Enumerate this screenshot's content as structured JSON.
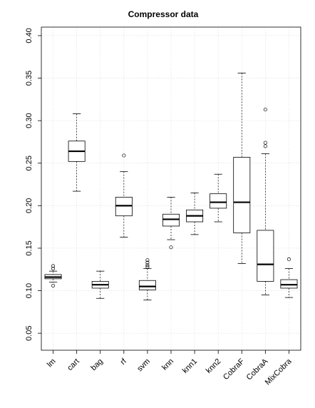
{
  "chart_data": {
    "type": "boxplot",
    "title": "Compressor data",
    "xlabel": "",
    "ylabel": "",
    "ylim": [
      0.03,
      0.41
    ],
    "yticks": [
      "0.05",
      "0.10",
      "0.15",
      "0.20",
      "0.25",
      "0.30",
      "0.35",
      "0.40"
    ],
    "ytick_values": [
      0.05,
      0.1,
      0.15,
      0.2,
      0.25,
      0.3,
      0.35,
      0.4
    ],
    "grid": true,
    "categories": [
      "lm",
      "cart",
      "bag",
      "rf",
      "svm",
      "knn",
      "knn1",
      "knn2",
      "CobraF",
      "CobraA",
      "MixCobra"
    ],
    "boxes": [
      {
        "min": 0.11,
        "q1": 0.114,
        "median": 0.116,
        "q3": 0.119,
        "max": 0.123,
        "outliers": [
          0.106,
          0.126,
          0.129
        ]
      },
      {
        "min": 0.217,
        "q1": 0.252,
        "median": 0.264,
        "q3": 0.276,
        "max": 0.308,
        "outliers": []
      },
      {
        "min": 0.091,
        "q1": 0.103,
        "median": 0.107,
        "q3": 0.111,
        "max": 0.123,
        "outliers": []
      },
      {
        "min": 0.163,
        "q1": 0.188,
        "median": 0.2,
        "q3": 0.21,
        "max": 0.24,
        "outliers": [
          0.259
        ]
      },
      {
        "min": 0.089,
        "q1": 0.101,
        "median": 0.105,
        "q3": 0.112,
        "max": 0.126,
        "outliers": [
          0.128,
          0.13,
          0.133,
          0.136
        ]
      },
      {
        "min": 0.16,
        "q1": 0.176,
        "median": 0.184,
        "q3": 0.19,
        "max": 0.21,
        "outliers": [
          0.151
        ]
      },
      {
        "min": 0.166,
        "q1": 0.181,
        "median": 0.188,
        "q3": 0.195,
        "max": 0.215,
        "outliers": []
      },
      {
        "min": 0.181,
        "q1": 0.197,
        "median": 0.204,
        "q3": 0.214,
        "max": 0.237,
        "outliers": []
      },
      {
        "min": 0.132,
        "q1": 0.168,
        "median": 0.204,
        "q3": 0.257,
        "max": 0.356,
        "outliers": []
      },
      {
        "min": 0.095,
        "q1": 0.111,
        "median": 0.131,
        "q3": 0.171,
        "max": 0.261,
        "outliers": [
          0.27,
          0.274,
          0.313
        ]
      },
      {
        "min": 0.092,
        "q1": 0.103,
        "median": 0.107,
        "q3": 0.113,
        "max": 0.126,
        "outliers": [
          0.137
        ]
      }
    ]
  }
}
